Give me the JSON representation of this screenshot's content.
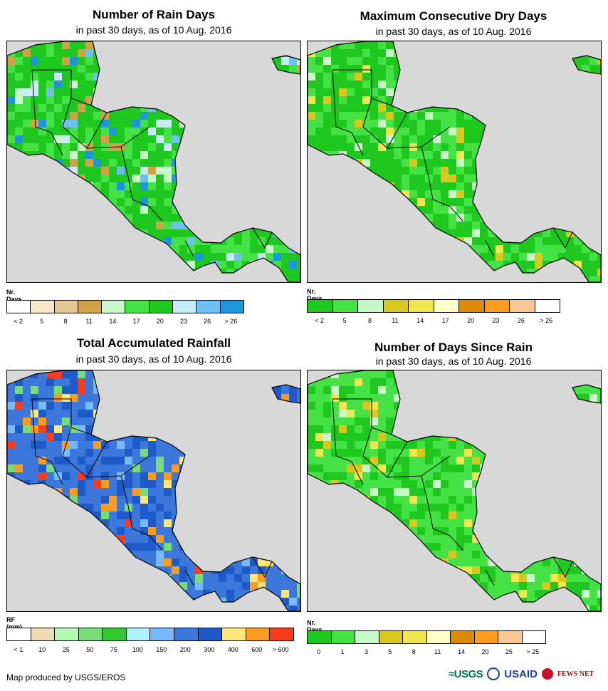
{
  "panels": [
    {
      "title": "Number of Rain Days",
      "subtitle": "in past 30 days, as of 10 Aug. 2016",
      "legend_title": "Nr. Days",
      "legend_colors": [
        "#ffffff",
        "#f7e6c8",
        "#e3c895",
        "#cfa24a",
        "#c8f7c8",
        "#44e244",
        "#1ec81e",
        "#c8ecf7",
        "#6ec0f0",
        "#1e96dc"
      ],
      "legend_labels": [
        "< 2",
        "5",
        "8",
        "11",
        "14",
        "17",
        "20",
        "23",
        "26",
        "> 26"
      ]
    },
    {
      "title": "Maximum Consecutive Dry Days",
      "subtitle": "in past 30 days, as of 10 Aug. 2016",
      "legend_title": "Nr. Days",
      "legend_colors": [
        "#1ec81e",
        "#44e244",
        "#c8f7c8",
        "#d8c81e",
        "#f0e650",
        "#ffffc8",
        "#dc8c00",
        "#fa9c1e",
        "#fac896",
        "#ffffff"
      ],
      "legend_labels": [
        "< 2",
        "5",
        "8",
        "11",
        "14",
        "17",
        "20",
        "23",
        "26",
        "> 26"
      ]
    },
    {
      "title": "Total Accumulated Rainfall",
      "subtitle": "in past 30 days, as of 10 Aug. 2016",
      "legend_title": "RF (mm)",
      "legend_colors": [
        "#ffffff",
        "#f0dcb4",
        "#b4fab4",
        "#78dc78",
        "#32c832",
        "#b4f0fa",
        "#78b9fa",
        "#3c78dc",
        "#1e5ac8",
        "#ffe678",
        "#fa9c1e",
        "#fa3c1e"
      ],
      "legend_labels": [
        "< 1",
        "10",
        "25",
        "50",
        "75",
        "100",
        "150",
        "200",
        "300",
        "400",
        "600",
        "> 600"
      ]
    },
    {
      "title": "Number of Days Since Rain",
      "subtitle": "in past 30 days, as of 10 Aug. 2016",
      "legend_title": "Nr. Days",
      "legend_colors": [
        "#1ec81e",
        "#44e244",
        "#c8f7c8",
        "#d8c81e",
        "#f0e650",
        "#ffffc8",
        "#dc8c00",
        "#fa9c1e",
        "#fac896",
        "#ffffff"
      ],
      "legend_labels": [
        "0",
        "1",
        "3",
        "5",
        "8",
        "11",
        "14",
        "20",
        "25",
        "> 25"
      ]
    }
  ],
  "credit": "Map produced by USGS/EROS",
  "logos": {
    "usgs": "≈USGS",
    "usaid": "USAID",
    "fewsnet": "FEWS NET"
  },
  "colors": {
    "ocean": "#d8d8d8",
    "border": "#000000"
  }
}
